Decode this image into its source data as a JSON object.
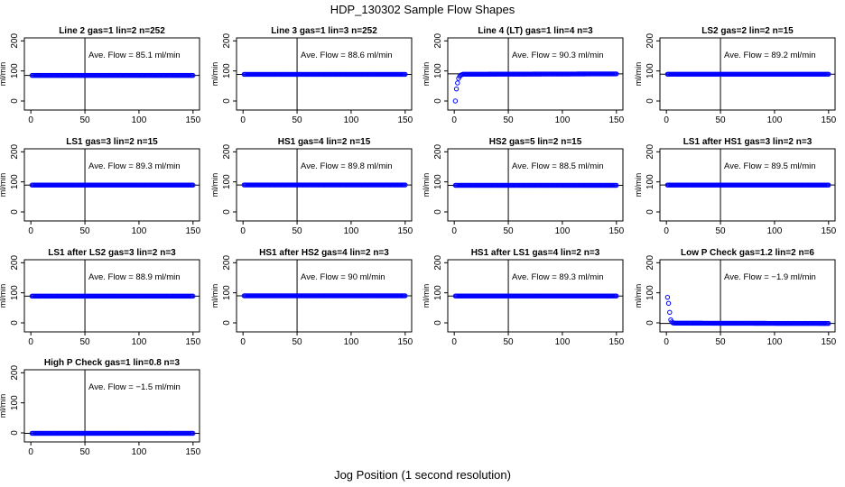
{
  "title": "HDP_130302  Sample Flow Shapes",
  "xlabel": "Jog Position (1 second resolution)",
  "chart_data": [
    {
      "type": "scatter",
      "title": "Line 2 gas=1 lin=2 n=252",
      "ylabel": "ml/min",
      "annotation": "Ave. Flow =  85.1  ml/min",
      "xlim": [
        0,
        150
      ],
      "ylim": [
        -30,
        210
      ],
      "xticks": [
        0,
        50,
        100,
        150
      ],
      "yticks": [
        0,
        100,
        200
      ],
      "vline_x": 50,
      "hline_y": 85.1,
      "color": "#0000ff",
      "x": [
        1,
        150
      ],
      "y": [
        85.1,
        85.1
      ]
    },
    {
      "type": "scatter",
      "title": "Line 3 gas=1 lin=3 n=252",
      "ylabel": "ml/min",
      "annotation": "Ave. Flow =  88.6  ml/min",
      "xlim": [
        0,
        150
      ],
      "ylim": [
        -30,
        210
      ],
      "xticks": [
        0,
        50,
        100,
        150
      ],
      "yticks": [
        0,
        100,
        200
      ],
      "vline_x": 50,
      "hline_y": 88.6,
      "color": "#0000ff",
      "x": [
        1,
        150
      ],
      "y": [
        88.6,
        88.6
      ]
    },
    {
      "type": "scatter",
      "title": "Line 4 (LT) gas=1 lin=4 n=3",
      "ylabel": "ml/min",
      "annotation": "Ave. Flow =  90.3  ml/min",
      "xlim": [
        0,
        150
      ],
      "ylim": [
        -30,
        210
      ],
      "xticks": [
        0,
        50,
        100,
        150
      ],
      "yticks": [
        0,
        100,
        200
      ],
      "vline_x": 50,
      "hline_y": 90.3,
      "color": "#0000ff",
      "x": [
        1,
        2,
        3,
        4,
        5,
        6,
        8,
        150
      ],
      "y": [
        0,
        40,
        60,
        75,
        82,
        86,
        89,
        90.3
      ]
    },
    {
      "type": "scatter",
      "title": "LS2 gas=2 lin=2 n=15",
      "ylabel": "ml/min",
      "annotation": "Ave. Flow =  89.2  ml/min",
      "xlim": [
        0,
        150
      ],
      "ylim": [
        -30,
        210
      ],
      "xticks": [
        0,
        50,
        100,
        150
      ],
      "yticks": [
        0,
        100,
        200
      ],
      "vline_x": 50,
      "hline_y": 89.2,
      "color": "#0000ff",
      "x": [
        1,
        150
      ],
      "y": [
        89.2,
        89.2
      ]
    },
    {
      "type": "scatter",
      "title": "LS1 gas=3 lin=2 n=15",
      "ylabel": "ml/min",
      "annotation": "Ave. Flow =  89.3  ml/min",
      "xlim": [
        0,
        150
      ],
      "ylim": [
        -30,
        210
      ],
      "xticks": [
        0,
        50,
        100,
        150
      ],
      "yticks": [
        0,
        100,
        200
      ],
      "vline_x": 50,
      "hline_y": 89.3,
      "color": "#0000ff",
      "x": [
        1,
        150
      ],
      "y": [
        89.3,
        89.3
      ]
    },
    {
      "type": "scatter",
      "title": "HS1 gas=4 lin=2 n=15",
      "ylabel": "ml/min",
      "annotation": "Ave. Flow =  89.8  ml/min",
      "xlim": [
        0,
        150
      ],
      "ylim": [
        -30,
        210
      ],
      "xticks": [
        0,
        50,
        100,
        150
      ],
      "yticks": [
        0,
        100,
        200
      ],
      "vline_x": 50,
      "hline_y": 89.8,
      "color": "#0000ff",
      "x": [
        1,
        150
      ],
      "y": [
        89.8,
        89.8
      ]
    },
    {
      "type": "scatter",
      "title": "HS2 gas=5 lin=2 n=15",
      "ylabel": "ml/min",
      "annotation": "Ave. Flow =  88.5  ml/min",
      "xlim": [
        0,
        150
      ],
      "ylim": [
        -30,
        210
      ],
      "xticks": [
        0,
        50,
        100,
        150
      ],
      "yticks": [
        0,
        100,
        200
      ],
      "vline_x": 50,
      "hline_y": 88.5,
      "color": "#0000ff",
      "x": [
        1,
        150
      ],
      "y": [
        88.5,
        88.5
      ]
    },
    {
      "type": "scatter",
      "title": "LS1 after HS1 gas=3 lin=2 n=3",
      "ylabel": "ml/min",
      "annotation": "Ave. Flow =  89.5  ml/min",
      "xlim": [
        0,
        150
      ],
      "ylim": [
        -30,
        210
      ],
      "xticks": [
        0,
        50,
        100,
        150
      ],
      "yticks": [
        0,
        100,
        200
      ],
      "vline_x": 50,
      "hline_y": 89.5,
      "color": "#0000ff",
      "x": [
        1,
        150
      ],
      "y": [
        89.5,
        89.5
      ]
    },
    {
      "type": "scatter",
      "title": "LS1 after LS2 gas=3 lin=2 n=3",
      "ylabel": "ml/min",
      "annotation": "Ave. Flow =  88.9  ml/min",
      "xlim": [
        0,
        150
      ],
      "ylim": [
        -30,
        210
      ],
      "xticks": [
        0,
        50,
        100,
        150
      ],
      "yticks": [
        0,
        100,
        200
      ],
      "vline_x": 50,
      "hline_y": 88.9,
      "color": "#0000ff",
      "x": [
        1,
        150
      ],
      "y": [
        88.9,
        88.9
      ]
    },
    {
      "type": "scatter",
      "title": "HS1 after HS2 gas=4 lin=2 n=3",
      "ylabel": "ml/min",
      "annotation": "Ave. Flow =  90  ml/min",
      "xlim": [
        0,
        150
      ],
      "ylim": [
        -30,
        210
      ],
      "xticks": [
        0,
        50,
        100,
        150
      ],
      "yticks": [
        0,
        100,
        200
      ],
      "vline_x": 50,
      "hline_y": 90,
      "color": "#0000ff",
      "x": [
        1,
        150
      ],
      "y": [
        90,
        90
      ]
    },
    {
      "type": "scatter",
      "title": "HS1 after LS1 gas=4 lin=2 n=3",
      "ylabel": "ml/min",
      "annotation": "Ave. Flow =  89.3  ml/min",
      "xlim": [
        0,
        150
      ],
      "ylim": [
        -30,
        210
      ],
      "xticks": [
        0,
        50,
        100,
        150
      ],
      "yticks": [
        0,
        100,
        200
      ],
      "vline_x": 50,
      "hline_y": 89.3,
      "color": "#0000ff",
      "x": [
        1,
        150
      ],
      "y": [
        89.3,
        89.3
      ]
    },
    {
      "type": "scatter",
      "title": "Low P Check gas=1.2 lin=2 n=6",
      "ylabel": "ml/min",
      "annotation": "Ave. Flow =  −1.9  ml/min",
      "xlim": [
        0,
        150
      ],
      "ylim": [
        -30,
        210
      ],
      "xticks": [
        0,
        50,
        100,
        150
      ],
      "yticks": [
        0,
        100,
        200
      ],
      "vline_x": 50,
      "hline_y": -1.9,
      "color": "#0000ff",
      "x": [
        1,
        2,
        3,
        4,
        5,
        6,
        8,
        150
      ],
      "y": [
        85,
        65,
        35,
        10,
        3,
        0,
        -1,
        -1.9
      ]
    },
    {
      "type": "scatter",
      "title": "High P Check gas=1 lin=0.8 n=3",
      "ylabel": "ml/min",
      "annotation": "Ave. Flow =  −1.5  ml/min",
      "xlim": [
        0,
        150
      ],
      "ylim": [
        -30,
        210
      ],
      "xticks": [
        0,
        50,
        100,
        150
      ],
      "yticks": [
        0,
        100,
        200
      ],
      "vline_x": 50,
      "hline_y": -1.5,
      "color": "#0000ff",
      "x": [
        1,
        150
      ],
      "y": [
        -1.5,
        -1.5
      ]
    }
  ]
}
